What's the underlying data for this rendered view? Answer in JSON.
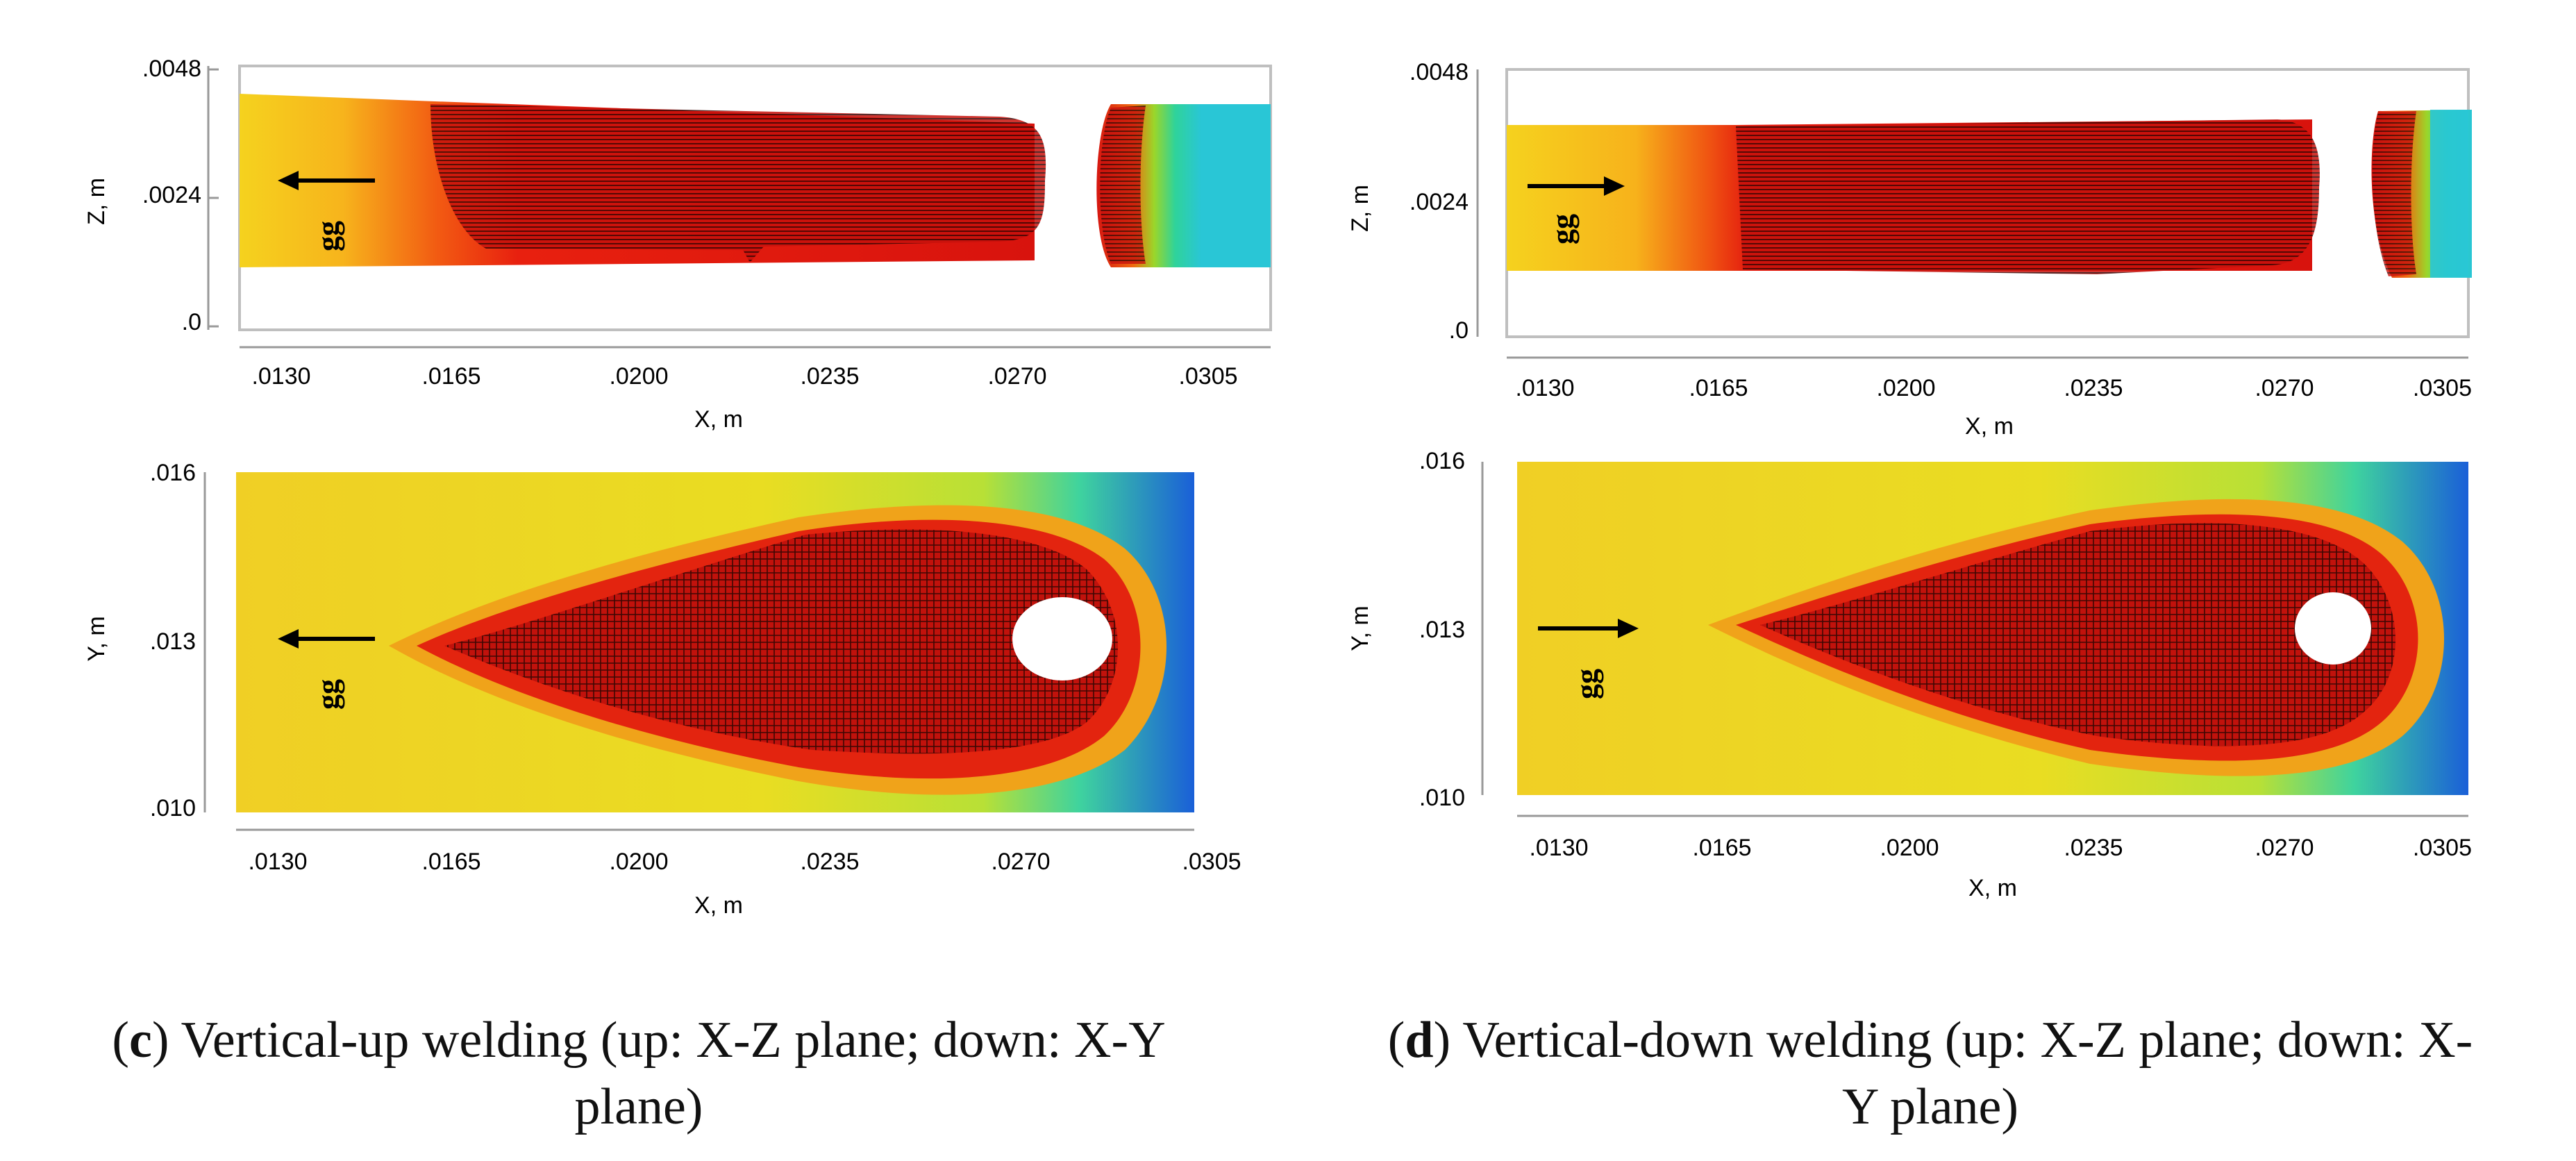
{
  "panels": [
    {
      "id": "c",
      "caption": {
        "letter": "c",
        "line1": ") Vertical-up welding (up: X-Z plane; down: X-Y",
        "line2": "plane)"
      },
      "gravity_label": "gg",
      "gravity_direction": "left",
      "xz_plot": {
        "ylabel": "Z, m",
        "xlabel": "X, m",
        "yticks": [
          ".0048",
          ".0024",
          ".0"
        ],
        "xticks": [
          ".0130",
          ".0165",
          ".0200",
          ".0235",
          ".0270",
          ".0305"
        ]
      },
      "xy_plot": {
        "ylabel": "Y, m",
        "xlabel": "X, m",
        "yticks": [
          ".016",
          ".013",
          ".010"
        ],
        "xticks": [
          ".0130",
          ".0165",
          ".0200",
          ".0235",
          ".0270",
          ".0305"
        ]
      }
    },
    {
      "id": "d",
      "caption": {
        "letter": "d",
        "line1": ") Vertical-down welding (up: X-Z plane; down: X-",
        "line2": "Y plane)"
      },
      "gravity_label": "gg",
      "gravity_direction": "right",
      "xz_plot": {
        "ylabel": "Z, m",
        "xlabel": "X, m",
        "yticks": [
          ".0048",
          ".0024",
          ".0"
        ],
        "xticks": [
          ".0130",
          ".0165",
          ".0200",
          ".0235",
          ".0270",
          ".0305"
        ]
      },
      "xy_plot": {
        "ylabel": "Y, m",
        "xlabel": "X, m",
        "yticks": [
          ".016",
          ".013",
          ".010"
        ],
        "xticks": [
          ".0130",
          ".0165",
          ".0200",
          ".0235",
          ".0270",
          ".0305"
        ]
      }
    }
  ]
}
